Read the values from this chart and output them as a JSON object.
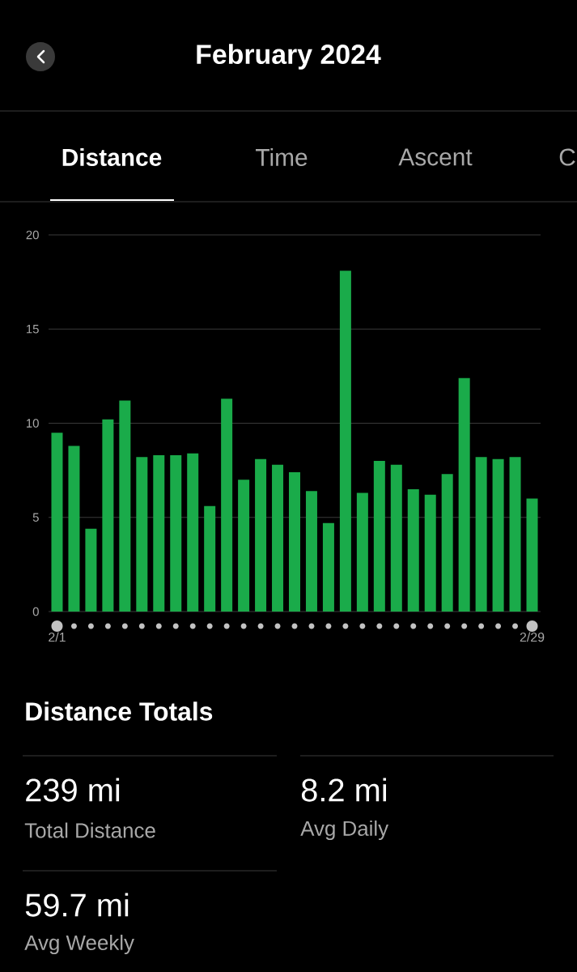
{
  "chart_data": {
    "type": "bar",
    "title": "February 2024",
    "categories": [
      "2/1",
      null,
      null,
      null,
      null,
      null,
      null,
      null,
      null,
      null,
      null,
      null,
      null,
      null,
      null,
      null,
      null,
      null,
      null,
      null,
      null,
      null,
      null,
      null,
      null,
      null,
      null,
      null,
      "2/29"
    ],
    "values": [
      9.5,
      8.8,
      4.4,
      10.2,
      11.2,
      8.2,
      8.3,
      8.3,
      8.4,
      5.6,
      11.3,
      7.0,
      8.1,
      7.8,
      7.4,
      6.4,
      4.7,
      18.1,
      6.3,
      8.0,
      7.8,
      6.5,
      6.2,
      7.3,
      12.4,
      8.2,
      8.1,
      8.2,
      6.0
    ],
    "color": "#1aab4a",
    "ylim": [
      0,
      20
    ],
    "yticks": [
      0,
      5,
      10,
      15,
      20
    ],
    "grid": "y",
    "annotations": [
      "Distance",
      "Time",
      "Ascent",
      "C",
      "Distance Totals",
      "239 mi",
      "Total Distance",
      "8.2 mi",
      "Avg Daily",
      "59.7 mi",
      "Avg Weekly"
    ]
  }
}
